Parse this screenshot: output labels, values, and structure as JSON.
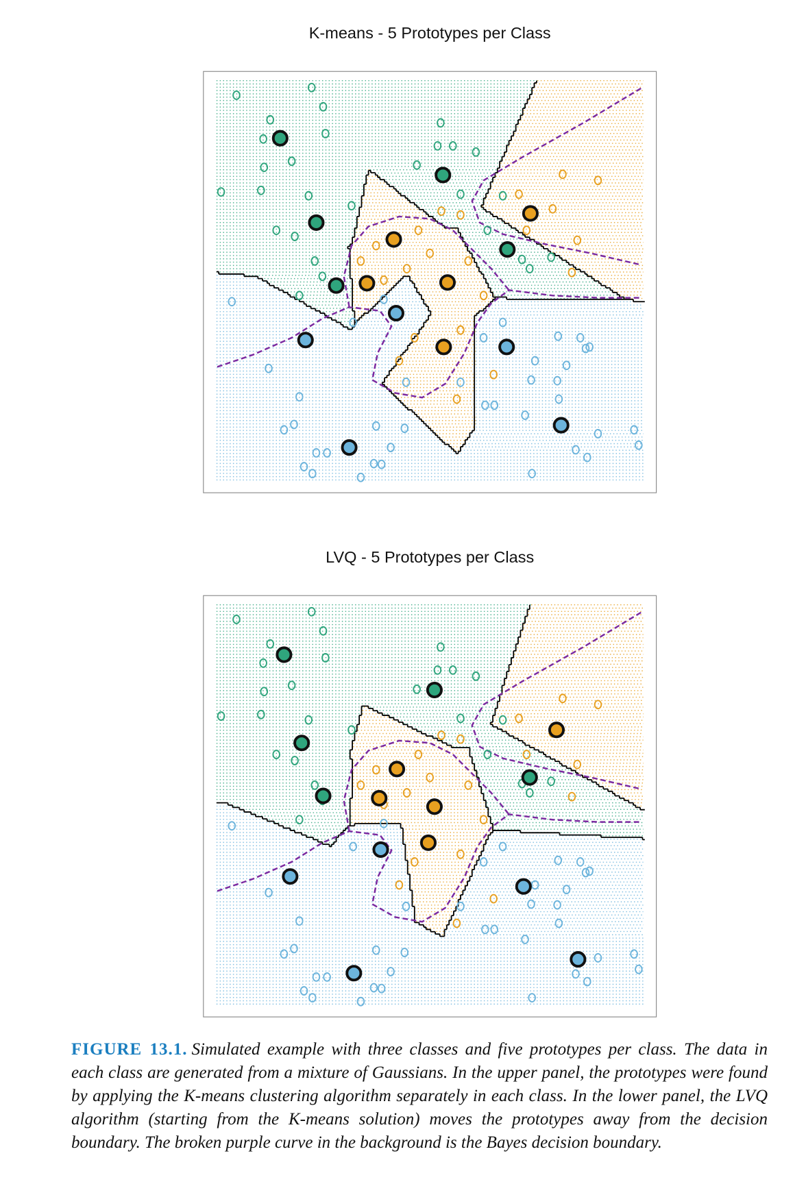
{
  "chart_data": [
    {
      "type": "scatter",
      "title": "K-means - 5 Prototypes  per Class",
      "xlim": [
        0,
        590
      ],
      "ylim": [
        0,
        549
      ],
      "points": [
        {
          "color": "#2fa57d",
          "x": [
            43,
            141,
            156,
            87,
            78,
            159,
            309,
            305,
            325,
            115,
            79,
            23,
            75,
            137,
            193,
            95,
            119,
            145,
            155,
            125,
            335,
            390,
            355,
            415,
            453,
            425,
            370,
            278
          ],
          "y": [
            518,
            528,
            503,
            486,
            461,
            468,
            482,
            452,
            452,
            432,
            424,
            392,
            394,
            387,
            374,
            342,
            334,
            302,
            282,
            257,
            389,
            387,
            444,
            304,
            307,
            292,
            342,
            427
          ]
        },
        {
          "color": "#e8a020",
          "x": [
            468,
            514,
            411,
            455,
            480,
            487,
            421,
            295,
            335,
            225,
            265,
            235,
            280,
            345,
            365,
            335,
            275,
            255,
            330,
            378,
            205,
            310
          ],
          "y": [
            415,
            407,
            389,
            370,
            287,
            329,
            342,
            312,
            362,
            322,
            292,
            277,
            342,
            302,
            257,
            212,
            202,
            172,
            122,
            154,
            302,
            367
          ]
        },
        {
          "color": "#6cb4dc",
          "x": [
            85,
            125,
            105,
            118,
            147,
            161,
            131,
            142,
            205,
            222,
            232,
            225,
            262,
            244,
            264,
            335,
            367,
            379,
            419,
            432,
            427,
            461,
            463,
            473,
            498,
            503,
            491,
            462,
            514,
            561,
            567,
            500,
            485,
            428,
            37,
            365,
            390,
            235,
            195
          ],
          "y": [
            162,
            125,
            82,
            89,
            52,
            52,
            34,
            25,
            20,
            38,
            37,
            87,
            84,
            59,
            144,
            144,
            114,
            114,
            101,
            172,
            147,
            146,
            122,
            166,
            188,
            190,
            202,
            204,
            77,
            82,
            62,
            46,
            56,
            25,
            249,
            202,
            222,
            252,
            222
          ]
        }
      ],
      "prototypes": [
        {
          "color": "#2fa57d",
          "x": [
            100,
            312,
            147,
            173,
            396
          ],
          "y": [
            462,
            414,
            352,
            270,
            317
          ]
        },
        {
          "color": "#e8a020",
          "x": [
            426,
            248,
            213,
            318,
            313
          ],
          "y": [
            364,
            330,
            273,
            274,
            190
          ]
        },
        {
          "color": "#6cb4dc",
          "x": [
            251,
            133,
            395,
            466,
            190
          ],
          "y": [
            234,
            199,
            190,
            88,
            59
          ]
        }
      ],
      "bayes_boundary": {
        "color": "#7b2aa0",
        "x": [
          18,
          65,
          115,
          155,
          190,
          230,
          245,
          227,
          220,
          250,
          285,
          315,
          340,
          357,
          375,
          398,
          455,
          515,
          570,
          null,
          190,
          183,
          193,
          215,
          255,
          295,
          325,
          350,
          375,
          398,
          null,
          570,
          495,
          415,
          365,
          350,
          360,
          390,
          445,
          505,
          570
        ],
        "y": [
          164,
          180,
          202,
          227,
          242,
          237,
          217,
          182,
          147,
          130,
          124,
          142,
          182,
          222,
          247,
          264,
          257,
          254,
          254,
          null,
          242,
          282,
          322,
          347,
          360,
          357,
          342,
          317,
          292,
          264,
          null,
          527,
          482,
          437,
          407,
          380,
          352,
          337,
          324,
          312,
          297
        ]
      }
    },
    {
      "type": "scatter",
      "title": "LVQ - 5 Prototypes per Class",
      "xlim": [
        0,
        590
      ],
      "ylim": [
        0,
        549
      ],
      "points": [
        {
          "color": "#2fa57d",
          "x": [
            43,
            141,
            156,
            87,
            78,
            159,
            309,
            305,
            325,
            115,
            79,
            23,
            75,
            137,
            193,
            95,
            119,
            145,
            155,
            125,
            335,
            390,
            355,
            415,
            453,
            425,
            370,
            278
          ],
          "y": [
            518,
            528,
            503,
            486,
            461,
            468,
            482,
            452,
            452,
            432,
            424,
            392,
            394,
            387,
            374,
            342,
            334,
            302,
            282,
            257,
            389,
            387,
            444,
            304,
            307,
            292,
            342,
            427
          ]
        },
        {
          "color": "#e8a020",
          "x": [
            468,
            514,
            411,
            455,
            480,
            487,
            421,
            295,
            335,
            225,
            265,
            235,
            280,
            345,
            365,
            335,
            275,
            255,
            330,
            378,
            205,
            310
          ],
          "y": [
            415,
            407,
            389,
            370,
            287,
            329,
            342,
            312,
            362,
            322,
            292,
            277,
            342,
            302,
            257,
            212,
            202,
            172,
            122,
            154,
            302,
            367
          ]
        },
        {
          "color": "#6cb4dc",
          "x": [
            85,
            125,
            105,
            118,
            147,
            161,
            131,
            142,
            205,
            222,
            232,
            225,
            262,
            244,
            264,
            335,
            367,
            379,
            419,
            432,
            427,
            461,
            463,
            473,
            498,
            503,
            491,
            462,
            514,
            561,
            567,
            500,
            485,
            428,
            37,
            365,
            390,
            235,
            195
          ],
          "y": [
            162,
            125,
            82,
            89,
            52,
            52,
            34,
            25,
            20,
            38,
            37,
            87,
            84,
            59,
            144,
            144,
            114,
            114,
            101,
            172,
            147,
            146,
            122,
            166,
            188,
            190,
            202,
            204,
            77,
            82,
            62,
            46,
            56,
            25,
            249,
            202,
            222,
            252,
            222
          ]
        }
      ],
      "prototypes": [
        {
          "color": "#2fa57d",
          "x": [
            105,
            301,
            128,
            156,
            425
          ],
          "y": [
            472,
            426,
            357,
            288,
            312
          ]
        },
        {
          "color": "#e8a020",
          "x": [
            460,
            252,
            229,
            301,
            293
          ],
          "y": [
            374,
            323,
            285,
            274,
            227
          ]
        },
        {
          "color": "#6cb4dc",
          "x": [
            231,
            113,
            417,
            488,
            196
          ],
          "y": [
            218,
            183,
            170,
            75,
            57
          ]
        }
      ],
      "bayes_boundary": {
        "color": "#7b2aa0",
        "x": [
          18,
          65,
          115,
          155,
          190,
          230,
          245,
          227,
          220,
          250,
          285,
          315,
          340,
          357,
          375,
          398,
          455,
          515,
          570,
          null,
          190,
          183,
          193,
          215,
          255,
          295,
          325,
          350,
          375,
          398,
          null,
          570,
          495,
          415,
          365,
          350,
          360,
          390,
          445,
          505,
          570
        ],
        "y": [
          164,
          180,
          202,
          227,
          242,
          237,
          217,
          182,
          147,
          130,
          124,
          142,
          182,
          222,
          247,
          264,
          257,
          254,
          254,
          null,
          242,
          282,
          322,
          347,
          360,
          357,
          342,
          317,
          292,
          264,
          null,
          527,
          482,
          437,
          407,
          380,
          352,
          337,
          324,
          312,
          297
        ]
      }
    }
  ],
  "caption": {
    "label": "FIGURE 13.1.",
    "text": "Simulated example with three classes and five prototypes per class. The data in each class are generated from a mixture of Gaussians. In the upper panel, the prototypes were found by applying the K-means clustering algorithm separately in each class. In the lower panel, the LVQ algorithm (starting from the K-means solution) moves the prototypes away from the decision boundary. The broken purple curve in the background is the Bayes decision boundary."
  }
}
